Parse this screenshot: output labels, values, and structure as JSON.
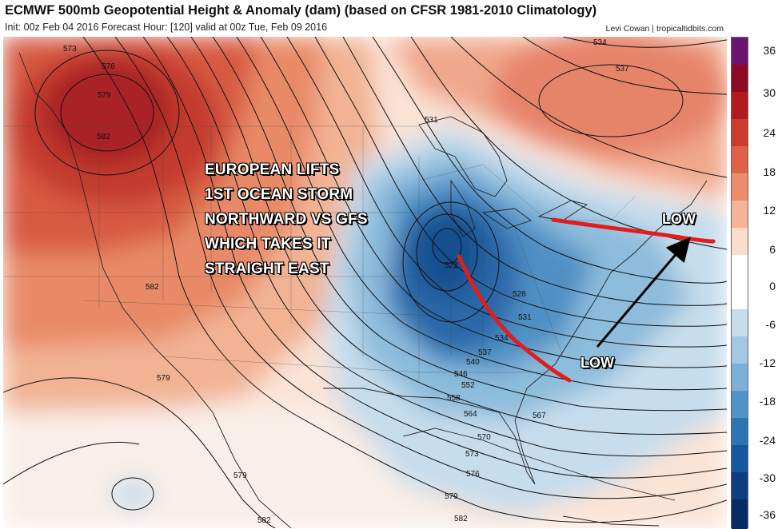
{
  "header": {
    "title": "ECMWF 500mb Geopotential Height & Anomaly (dam) (based on CFSR 1981-2010 Climatology)",
    "subtitle": "Init: 00z Feb 04 2016   Forecast Hour: [120]   valid at 00z Tue, Feb 09 2016",
    "credit": "Levi Cowan | tropicaltidbits.com"
  },
  "annotation": {
    "lines": [
      "EUROPEAN LIFTS",
      "1ST OCEAN STORM",
      "NORTHWARD VS GFS",
      "WHICH TAKES IT",
      "STRAIGHT EAST"
    ],
    "low_labels": [
      "LOW",
      "LOW"
    ]
  },
  "contour_labels": [
    "573",
    "576",
    "579",
    "582",
    "582",
    "579",
    "579",
    "582",
    "531",
    "534",
    "537",
    "522",
    "528",
    "531",
    "534",
    "537",
    "540",
    "546",
    "552",
    "558",
    "564",
    "567",
    "570",
    "573",
    "576",
    "579",
    "582"
  ],
  "colorbar": {
    "tick_labels": [
      "36",
      "30",
      "24",
      "18",
      "12",
      "6",
      "0",
      "-6",
      "-12",
      "-18",
      "-24",
      "-30",
      "-36"
    ],
    "colors": [
      "#6b1470",
      "#8d0a24",
      "#b31a1f",
      "#cc3b2d",
      "#df6148",
      "#ec8c6d",
      "#f4b599",
      "#fbddcd",
      "#ffffff",
      "#ffffff",
      "#c7ddec",
      "#a3c8e3",
      "#7cb0d6",
      "#5294c5",
      "#2d75b2",
      "#16589d",
      "#0d3f80",
      "#082c61"
    ]
  }
}
